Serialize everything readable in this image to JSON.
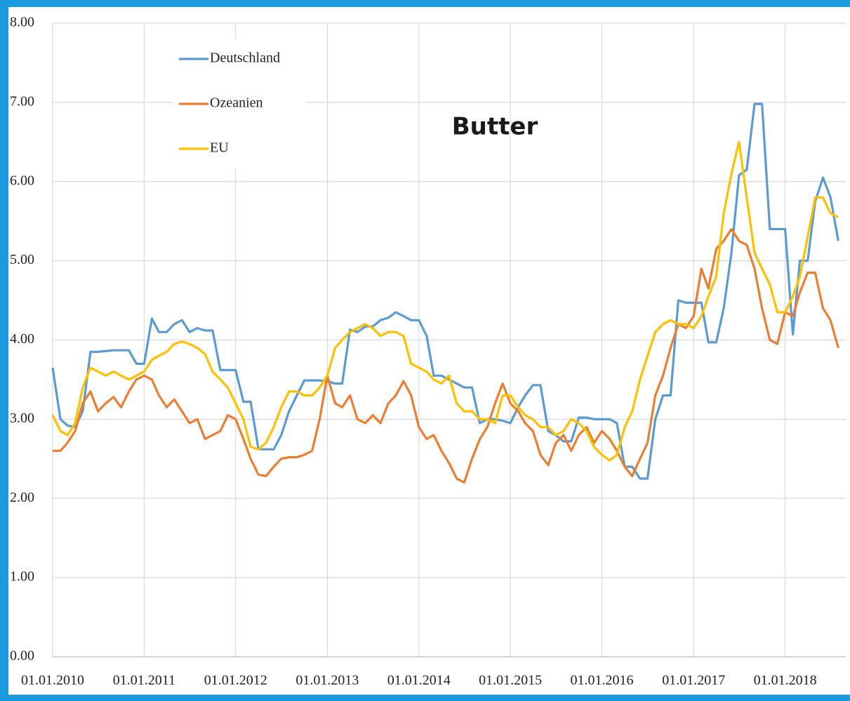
{
  "chart_data": {
    "type": "line",
    "title": "Butter",
    "x": [
      "01.01.2010",
      "01.02.2010",
      "01.03.2010",
      "01.04.2010",
      "01.05.2010",
      "01.06.2010",
      "01.07.2010",
      "01.08.2010",
      "01.09.2010",
      "01.10.2010",
      "01.11.2010",
      "01.12.2010",
      "01.01.2011",
      "01.02.2011",
      "01.03.2011",
      "01.04.2011",
      "01.05.2011",
      "01.06.2011",
      "01.07.2011",
      "01.08.2011",
      "01.09.2011",
      "01.10.2011",
      "01.11.2011",
      "01.12.2011",
      "01.01.2012",
      "01.02.2012",
      "01.03.2012",
      "01.04.2012",
      "01.05.2012",
      "01.06.2012",
      "01.07.2012",
      "01.08.2012",
      "01.09.2012",
      "01.10.2012",
      "01.11.2012",
      "01.12.2012",
      "01.01.2013",
      "01.02.2013",
      "01.03.2013",
      "01.04.2013",
      "01.05.2013",
      "01.06.2013",
      "01.07.2013",
      "01.08.2013",
      "01.09.2013",
      "01.10.2013",
      "01.11.2013",
      "01.12.2013",
      "01.01.2014",
      "01.02.2014",
      "01.03.2014",
      "01.04.2014",
      "01.05.2014",
      "01.06.2014",
      "01.07.2014",
      "01.08.2014",
      "01.09.2014",
      "01.10.2014",
      "01.11.2014",
      "01.12.2014",
      "01.01.2015",
      "01.02.2015",
      "01.03.2015",
      "01.04.2015",
      "01.05.2015",
      "01.06.2015",
      "01.07.2015",
      "01.08.2015",
      "01.09.2015",
      "01.10.2015",
      "01.11.2015",
      "01.12.2015",
      "01.01.2016",
      "01.02.2016",
      "01.03.2016",
      "01.04.2016",
      "01.05.2016",
      "01.06.2016",
      "01.07.2016",
      "01.08.2016",
      "01.09.2016",
      "01.10.2016",
      "01.11.2016",
      "01.12.2016",
      "01.01.2017",
      "01.02.2017",
      "01.03.2017",
      "01.04.2017",
      "01.05.2017",
      "01.06.2017",
      "01.07.2017",
      "01.08.2017",
      "01.09.2017",
      "01.10.2017",
      "01.11.2017",
      "01.12.2017",
      "01.01.2018",
      "01.02.2018",
      "01.03.2018",
      "01.04.2018",
      "01.05.2018",
      "01.06.2018",
      "01.07.2018",
      "01.08.2018"
    ],
    "series": [
      {
        "name": "Deutschland",
        "color": "#5b9bd5",
        "values": [
          3.65,
          3.0,
          2.92,
          2.9,
          3.1,
          3.85,
          3.85,
          3.86,
          3.87,
          3.87,
          3.87,
          3.7,
          3.7,
          4.27,
          4.1,
          4.1,
          4.2,
          4.25,
          4.1,
          4.15,
          4.12,
          4.12,
          3.62,
          3.62,
          3.62,
          3.22,
          3.22,
          2.62,
          2.62,
          2.62,
          2.8,
          3.1,
          3.3,
          3.49,
          3.49,
          3.49,
          3.48,
          3.45,
          3.45,
          4.13,
          4.1,
          4.17,
          4.17,
          4.25,
          4.28,
          4.35,
          4.3,
          4.25,
          4.25,
          4.05,
          3.55,
          3.55,
          3.5,
          3.45,
          3.4,
          3.4,
          2.95,
          3.0,
          3.0,
          2.98,
          2.95,
          3.15,
          3.3,
          3.43,
          3.43,
          2.85,
          2.8,
          2.72,
          2.72,
          3.02,
          3.02,
          3.0,
          3.0,
          3.0,
          2.95,
          2.4,
          2.4,
          2.25,
          2.25,
          3.0,
          3.3,
          3.3,
          4.5,
          4.47,
          4.47,
          4.47,
          3.97,
          3.97,
          4.4,
          5.1,
          6.08,
          6.15,
          6.98,
          6.98,
          5.4,
          5.4,
          5.4,
          4.07,
          5.0,
          5.0,
          5.75,
          6.05,
          5.8,
          5.25
        ]
      },
      {
        "name": "Ozeanien",
        "color": "#ed7d31",
        "values": [
          2.6,
          2.6,
          2.7,
          2.85,
          3.2,
          3.35,
          3.1,
          3.2,
          3.28,
          3.15,
          3.35,
          3.5,
          3.55,
          3.5,
          3.3,
          3.15,
          3.25,
          3.1,
          2.95,
          3.0,
          2.75,
          2.8,
          2.85,
          3.05,
          3.0,
          2.75,
          2.5,
          2.3,
          2.28,
          2.4,
          2.5,
          2.52,
          2.52,
          2.55,
          2.6,
          3.0,
          3.55,
          3.2,
          3.15,
          3.3,
          3.0,
          2.95,
          3.05,
          2.95,
          3.2,
          3.3,
          3.48,
          3.3,
          2.9,
          2.75,
          2.8,
          2.6,
          2.45,
          2.25,
          2.2,
          2.5,
          2.75,
          2.9,
          3.2,
          3.45,
          3.2,
          3.1,
          2.95,
          2.85,
          2.55,
          2.42,
          2.7,
          2.8,
          2.6,
          2.8,
          2.9,
          2.7,
          2.85,
          2.75,
          2.6,
          2.4,
          2.28,
          2.5,
          2.7,
          3.3,
          3.55,
          3.9,
          4.2,
          4.15,
          4.3,
          4.9,
          4.65,
          5.15,
          5.25,
          5.4,
          5.25,
          5.2,
          4.9,
          4.4,
          4.0,
          3.95,
          4.35,
          4.3,
          4.6,
          4.85,
          4.85,
          4.4,
          4.25,
          3.9
        ]
      },
      {
        "name": "EU",
        "color": "#ffc000",
        "values": [
          3.05,
          2.85,
          2.8,
          2.95,
          3.4,
          3.65,
          3.6,
          3.55,
          3.6,
          3.55,
          3.5,
          3.55,
          3.6,
          3.75,
          3.8,
          3.85,
          3.95,
          3.98,
          3.95,
          3.9,
          3.82,
          3.6,
          3.5,
          3.4,
          3.2,
          3.0,
          2.65,
          2.62,
          2.7,
          2.9,
          3.15,
          3.35,
          3.35,
          3.3,
          3.3,
          3.4,
          3.55,
          3.9,
          4.0,
          4.1,
          4.15,
          4.2,
          4.15,
          4.05,
          4.1,
          4.1,
          4.05,
          3.7,
          3.65,
          3.6,
          3.5,
          3.45,
          3.55,
          3.2,
          3.1,
          3.1,
          3.0,
          3.0,
          2.95,
          3.3,
          3.3,
          3.15,
          3.05,
          3.0,
          2.9,
          2.9,
          2.8,
          2.85,
          3.0,
          2.95,
          2.85,
          2.65,
          2.55,
          2.48,
          2.55,
          2.9,
          3.1,
          3.5,
          3.8,
          4.1,
          4.2,
          4.25,
          4.2,
          4.2,
          4.15,
          4.3,
          4.55,
          4.8,
          5.6,
          6.1,
          6.5,
          5.8,
          5.1,
          4.9,
          4.7,
          4.35,
          4.35,
          4.55,
          4.8,
          5.3,
          5.8,
          5.8,
          5.6,
          5.55
        ]
      }
    ],
    "xlim": [
      "01.01.2010",
      "31.08.2018"
    ],
    "xticks": [
      "01.01.2010",
      "01.01.2011",
      "01.01.2012",
      "01.01.2013",
      "01.01.2014",
      "01.01.2015",
      "01.01.2016",
      "01.01.2017",
      "01.01.2018"
    ],
    "ylim": [
      0,
      8
    ],
    "yticks": [
      {
        "value": 0,
        "label": "0.00"
      },
      {
        "value": 1,
        "label": "1.00"
      },
      {
        "value": 2,
        "label": "2.00"
      },
      {
        "value": 3,
        "label": "3.00"
      },
      {
        "value": 4,
        "label": "4.00"
      },
      {
        "value": 5,
        "label": "5.00"
      },
      {
        "value": 6,
        "label": "6.00"
      },
      {
        "value": 7,
        "label": "7.00"
      },
      {
        "value": 8,
        "label": "8.00"
      }
    ],
    "grid": true,
    "legend": "upper left"
  }
}
